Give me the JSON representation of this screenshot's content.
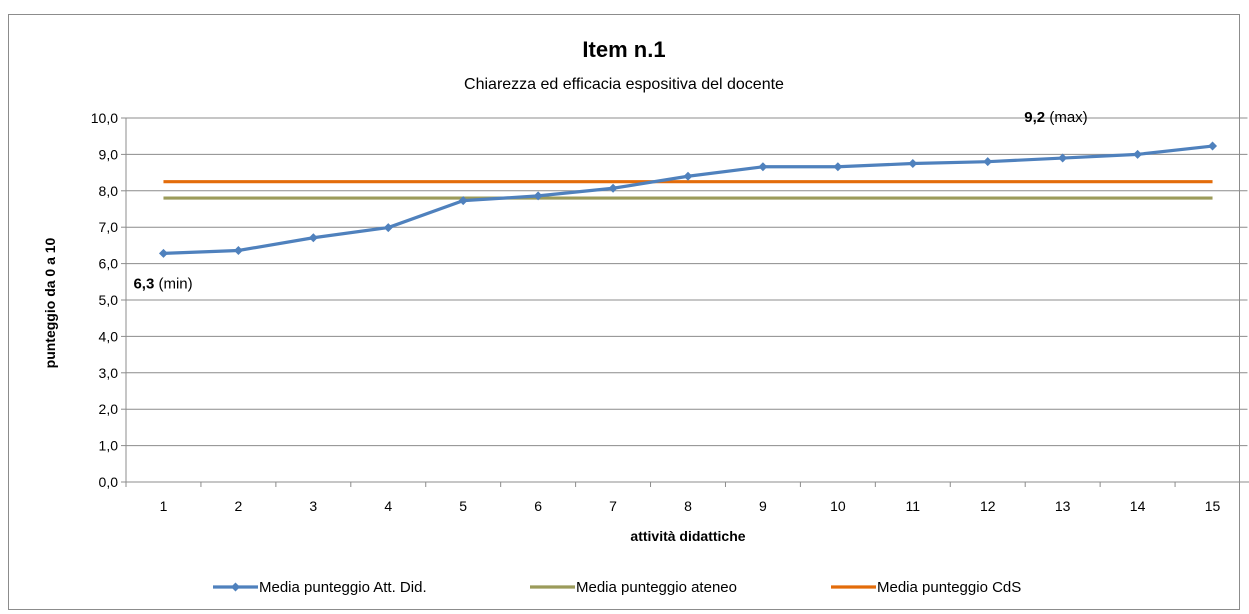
{
  "chart_data": {
    "type": "line",
    "title": "Item n.1",
    "subtitle": "Chiarezza ed efficacia espositiva del docente",
    "xlabel": "attività didattiche",
    "ylabel": "punteggio da 0 a 10",
    "categories": [
      "1",
      "2",
      "3",
      "4",
      "5",
      "6",
      "7",
      "8",
      "9",
      "10",
      "11",
      "12",
      "13",
      "14",
      "15"
    ],
    "ylim": [
      0,
      10
    ],
    "yticks": [
      "0,0",
      "1,0",
      "2,0",
      "3,0",
      "4,0",
      "5,0",
      "6,0",
      "7,0",
      "8,0",
      "9,0",
      "10,0"
    ],
    "grid": true,
    "legend_position": "bottom",
    "series": [
      {
        "name": "Media punteggio Att. Did.",
        "color": "#4f81bd",
        "marker": "diamond",
        "values": [
          6.28,
          6.36,
          6.71,
          6.99,
          7.73,
          7.86,
          8.07,
          8.4,
          8.66,
          8.66,
          8.75,
          8.8,
          8.9,
          9.0,
          9.23
        ]
      },
      {
        "name": "Media punteggio ateneo",
        "color": "#9b9b5a",
        "marker": "none",
        "values": [
          7.8,
          7.8,
          7.8,
          7.8,
          7.8,
          7.8,
          7.8,
          7.8,
          7.8,
          7.8,
          7.8,
          7.8,
          7.8,
          7.8,
          7.8
        ]
      },
      {
        "name": "Media punteggio CdS",
        "color": "#e36c0a",
        "marker": "none",
        "values": [
          8.25,
          8.25,
          8.25,
          8.25,
          8.25,
          8.25,
          8.25,
          8.25,
          8.25,
          8.25,
          8.25,
          8.25,
          8.25,
          8.25,
          8.25
        ]
      }
    ],
    "annotations": [
      {
        "value": "6,3",
        "note": "(min)",
        "category": "1",
        "y": 6.28
      },
      {
        "value": "9,2",
        "note": "(max)",
        "category": "13",
        "y": 9.23
      }
    ]
  }
}
